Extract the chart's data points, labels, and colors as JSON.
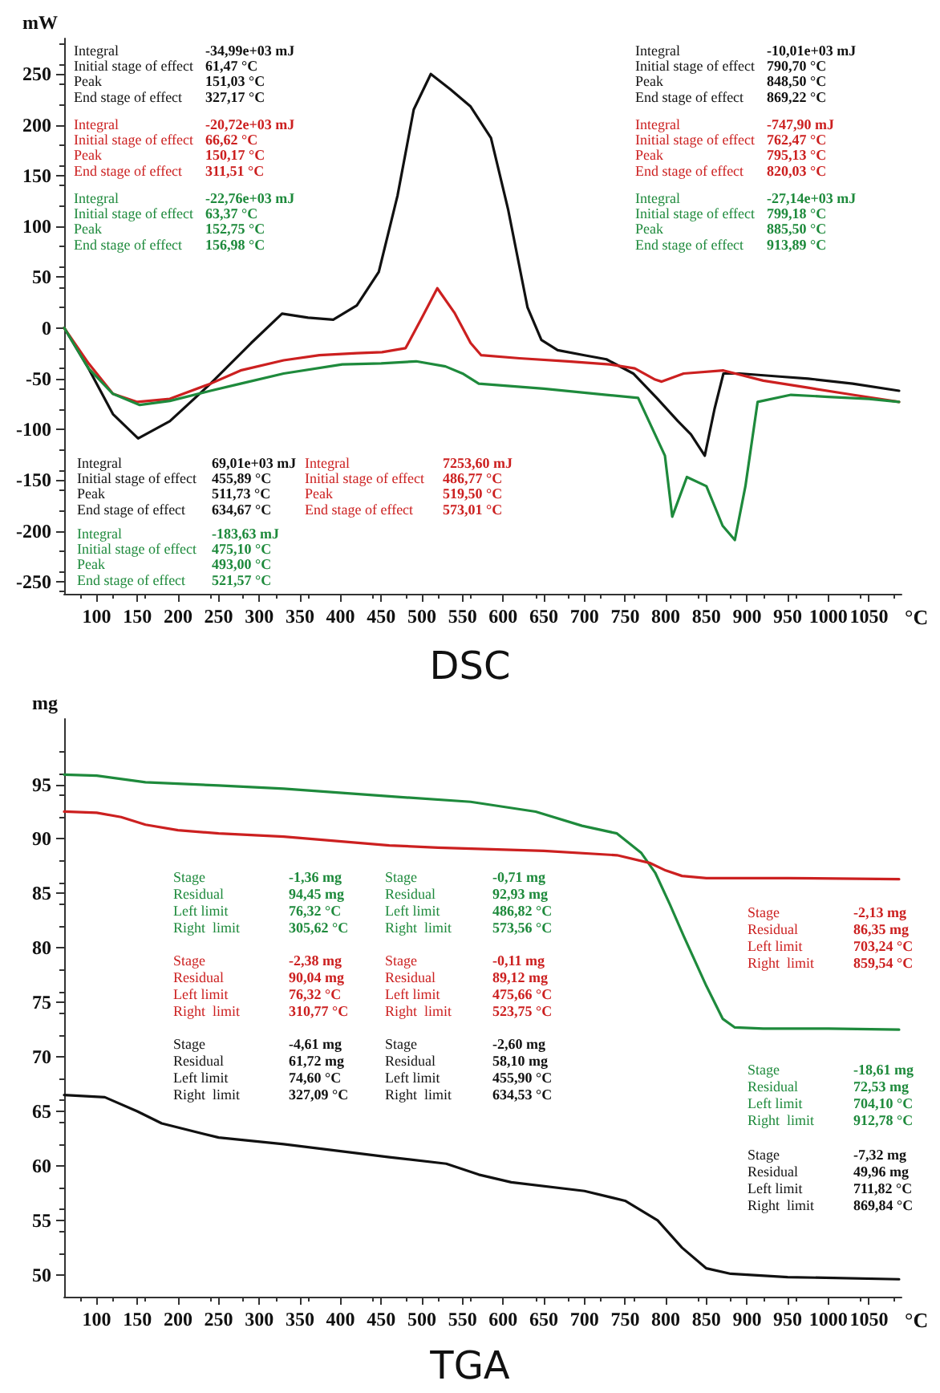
{
  "chart_data": [
    {
      "type": "line",
      "title": "DSC",
      "xlabel": "°C",
      "ylabel": "mW",
      "xlim": [
        60,
        1090
      ],
      "ylim": [
        -262,
        285
      ],
      "xticks": [
        100,
        150,
        200,
        250,
        300,
        350,
        400,
        450,
        500,
        550,
        600,
        650,
        700,
        750,
        800,
        850,
        900,
        950,
        1000,
        1050
      ],
      "yticks": [
        -250,
        -200,
        -150,
        -100,
        -50,
        0,
        50,
        100,
        150,
        200,
        250
      ],
      "grid": false,
      "marker": "none",
      "line_style": "solid",
      "series": [
        {
          "color": "#111111",
          "x": [
            60,
            90,
            120,
            151,
            190,
            240,
            290,
            328,
            360,
            391,
            420,
            447,
            470,
            490,
            511,
            535,
            560,
            585,
            606,
            630,
            647,
            667,
            700,
            727,
            760,
            790,
            815,
            831,
            848,
            860,
            871,
            891,
            940,
            975,
            1030,
            1087
          ],
          "values": [
            0,
            -40,
            -85,
            -109,
            -92,
            -55,
            -15,
            14,
            10,
            8,
            22,
            55,
            130,
            215,
            250,
            235,
            218,
            187,
            117,
            20,
            -12,
            -22,
            -27,
            -31,
            -45,
            -70,
            -92,
            -105,
            -126,
            -80,
            -45,
            -45,
            -48,
            -50,
            -55,
            -62
          ]
        },
        {
          "color": "#cc2020",
          "x": [
            60,
            90,
            120,
            150,
            190,
            240,
            277,
            330,
            374,
            420,
            451,
            480,
            500,
            519,
            540,
            560,
            573,
            620,
            680,
            731,
            762,
            787,
            795,
            822,
            871,
            920,
            975,
            1030,
            1087
          ],
          "values": [
            0,
            -35,
            -65,
            -73,
            -70,
            -55,
            -42,
            -32,
            -27,
            -25,
            -24,
            -20,
            10,
            39,
            15,
            -15,
            -27,
            -30,
            -33,
            -36,
            -40,
            -51,
            -53,
            -45,
            -42,
            -52,
            -59,
            -66,
            -73
          ]
        },
        {
          "color": "#1e8a3c",
          "x": [
            60,
            90,
            120,
            153,
            190,
            240,
            277,
            330,
            402,
            450,
            493,
            529,
            550,
            570,
            650,
            727,
            766,
            799,
            808,
            826,
            850,
            870,
            885,
            898,
            913,
            954,
            1000,
            1050,
            1087
          ],
          "values": [
            0,
            -40,
            -65,
            -76,
            -72,
            -62,
            -55,
            -45,
            -36,
            -35,
            -33,
            -38,
            -45,
            -55,
            -60,
            -66,
            -69,
            -126,
            -186,
            -147,
            -156,
            -195,
            -209,
            -156,
            -73,
            -66,
            -68,
            -70,
            -73
          ]
        }
      ],
      "annotations": [
        "Integral\t-34,99e+03 mJ\nInitial stage of effect\t61,47 °C\nPeak\t151,03 °C\nEnd stage of effect\t327,17 °C",
        "Integral\t-20,72e+03 mJ\nInitial stage of effect\t66,62 °C\nPeak\t150,17 °C\nEnd stage of effect\t311,51 °C",
        "Integral\t-22,76e+03 mJ\nInitial stage of effect\t63,37 °C\nPeak\t152,75 °C\nEnd stage of effect\t156,98 °C",
        "Integral\t-10,01e+03 mJ\nInitial stage of effect\t790,70 °C\nPeak\t848,50 °C\nEnd stage of effect\t869,22 °C",
        "Integral\t-747,90 mJ\nInitial stage of effect\t762,47 °C\nPeak\t795,13 °C\nEnd stage of effect\t820,03 °C",
        "Integral\t-27,14e+03 mJ\nInitial stage of effect\t799,18 °C\nPeak\t885,50 °C\nEnd stage of effect\t913,89 °C",
        "Integral\t69,01e+03 mJ\nInitial stage of effect\t455,89 °C\nPeak\t511,73 °C\nEnd stage of effect\t634,67 °C",
        "Integral\t-183,63 mJ\nInitial stage of effect\t475,10 °C\nPeak\t493,00 °C\nEnd stage of effect\t521,57 °C",
        "Integral\t7253,60 mJ\nInitial stage of effect\t486,77 °C\nPeak\t519,50 °C\nEnd stage of effect\t573,01 °C"
      ]
    },
    {
      "type": "line",
      "title": "TGA",
      "xlabel": "°C",
      "ylabel": "mg",
      "xlim": [
        60,
        1090
      ],
      "ylim": [
        48,
        101
      ],
      "xticks": [
        100,
        150,
        200,
        250,
        300,
        350,
        400,
        450,
        500,
        550,
        600,
        650,
        700,
        750,
        800,
        850,
        900,
        950,
        1000,
        1050
      ],
      "yticks": [
        50,
        55,
        60,
        65,
        70,
        75,
        80,
        85,
        90,
        95
      ],
      "grid": false,
      "marker": "none",
      "line_style": "solid",
      "series": [
        {
          "color": "#1e8a3c",
          "x": [
            60,
            100,
            160,
            250,
            330,
            460,
            560,
            640,
            697,
            740,
            770,
            787,
            805,
            822,
            850,
            870,
            885,
            920,
            1000,
            1087
          ],
          "values": [
            95.9,
            95.8,
            95.2,
            94.9,
            94.6,
            93.9,
            93.4,
            92.5,
            91.2,
            90.5,
            88.7,
            86.9,
            84,
            81.1,
            76.5,
            73.5,
            72.7,
            72.6,
            72.6,
            72.5
          ]
        },
        {
          "color": "#cc2020",
          "x": [
            60,
            100,
            130,
            160,
            200,
            250,
            330,
            460,
            520,
            650,
            740,
            780,
            800,
            820,
            850,
            870,
            950,
            1087
          ],
          "values": [
            92.5,
            92.4,
            92,
            91.3,
            90.8,
            90.5,
            90.2,
            89.4,
            89.2,
            88.9,
            88.5,
            87.8,
            87.1,
            86.6,
            86.4,
            86.4,
            86.4,
            86.3
          ]
        },
        {
          "color": "#111111",
          "x": [
            60,
            110,
            150,
            180,
            250,
            330,
            460,
            530,
            570,
            610,
            700,
            750,
            790,
            820,
            850,
            880,
            950,
            1087
          ],
          "values": [
            66.5,
            66.3,
            65,
            63.9,
            62.6,
            62,
            60.8,
            60.2,
            59.2,
            58.5,
            57.7,
            56.8,
            55,
            52.5,
            50.6,
            50.1,
            49.8,
            49.6
          ]
        }
      ],
      "annotations": [
        "Stage\t-1,36 mg\nResidual\t94,45 mg\nLeft limit\t76,32 °C\nRight  limit\t305,62 °C",
        "Stage\t-2,38 mg\nResidual\t90,04 mg\nLeft limit\t76,32 °C\nRight  limit\t310,77 °C",
        "Stage\t-4,61 mg\nResidual\t61,72 mg\nLeft limit\t74,60 °C\nRight  limit\t327,09 °C",
        "Stage\t-0,71 mg\nResidual\t92,93 mg\nLeft limit\t486,82 °C\nRight  limit\t573,56 °C",
        "Stage\t-0,11 mg\nResidual\t89,12 mg\nLeft limit\t475,66 °C\nRight  limit\t523,75 °C",
        "Stage\t-2,60 mg\nResidual\t58,10 mg\nLeft limit\t455,90 °C\nRight  limit\t634,53 °C",
        "Stage\t-2,13 mg\nResidual\t86,35 mg\nLeft limit\t703,24 °C\nRight  limit\t859,54 °C",
        "Stage\t-18,61 mg\nResidual\t72,53 mg\nLeft limit\t704,10 °C\nRight  limit\t912,78 °C",
        "Stage\t-7,32 mg\nResidual\t49,96 mg\nLeft limit\t711,82 °C\nRight  limit\t869,84 °C"
      ]
    }
  ]
}
